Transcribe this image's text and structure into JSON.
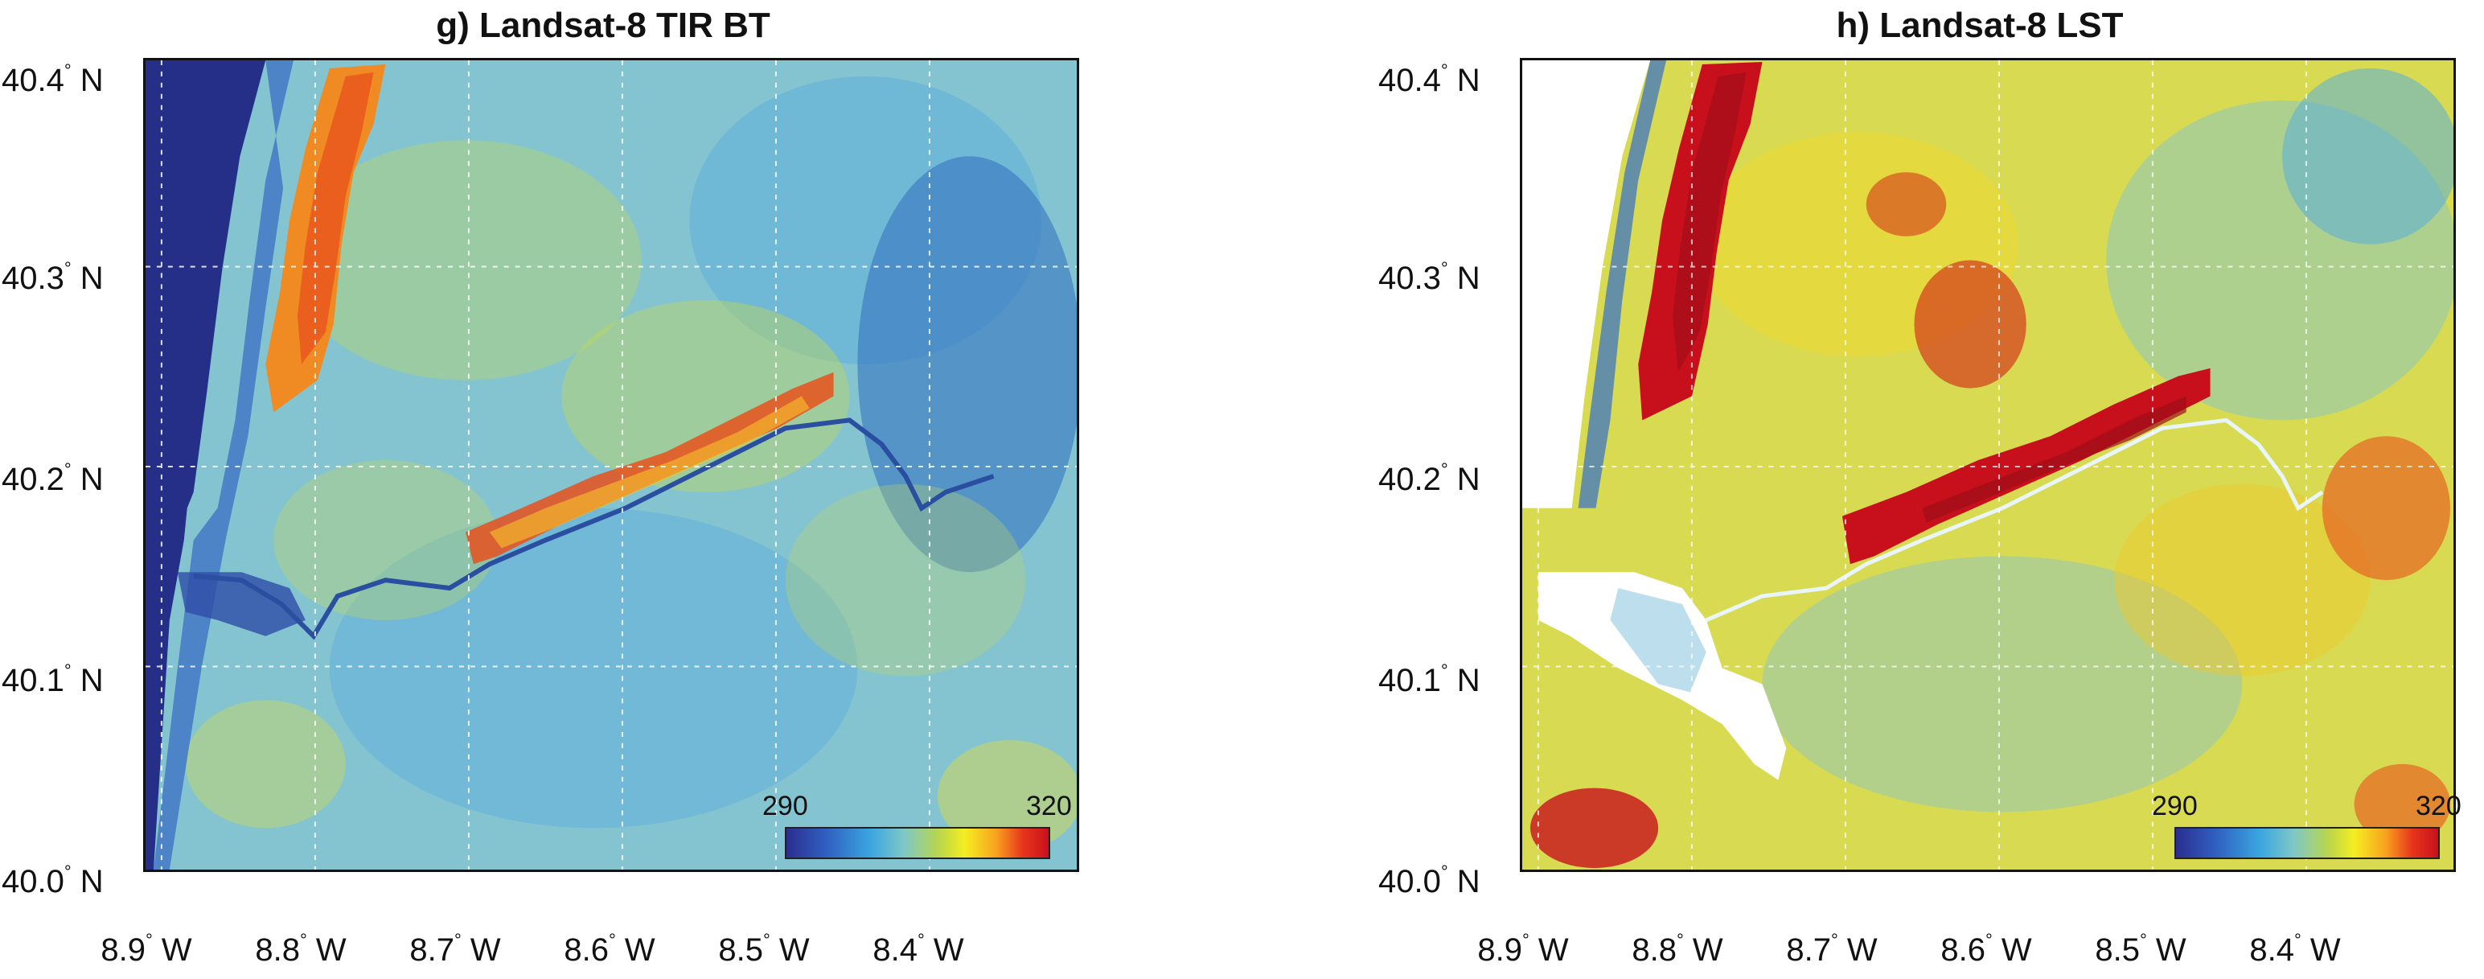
{
  "panels": [
    {
      "title": "g) Landsat-8 TIR BT",
      "colorbar": {
        "min_label": "290",
        "max_label": "320"
      }
    },
    {
      "title": "h) Landsat-8 LST",
      "colorbar": {
        "min_label": "290",
        "max_label": "320"
      }
    }
  ],
  "axes": {
    "lat_ticks": [
      {
        "value": "40.4",
        "suffix": "N"
      },
      {
        "value": "40.3",
        "suffix": "N"
      },
      {
        "value": "40.2",
        "suffix": "N"
      },
      {
        "value": "40.1",
        "suffix": "N"
      },
      {
        "value": "40.0",
        "suffix": "N"
      }
    ],
    "lon_ticks": [
      {
        "value": "8.9",
        "suffix": "W"
      },
      {
        "value": "8.8",
        "suffix": "W"
      },
      {
        "value": "8.7",
        "suffix": "W"
      },
      {
        "value": "8.6",
        "suffix": "W"
      },
      {
        "value": "8.5",
        "suffix": "W"
      },
      {
        "value": "8.4",
        "suffix": "W"
      }
    ]
  },
  "colors": {
    "ocean": "#262f88",
    "cool": "#3a8fd4",
    "mid": "#7fc4c8",
    "warm": "#e7e23a",
    "hot": "#e8361c",
    "hottest": "#c8101d"
  }
}
